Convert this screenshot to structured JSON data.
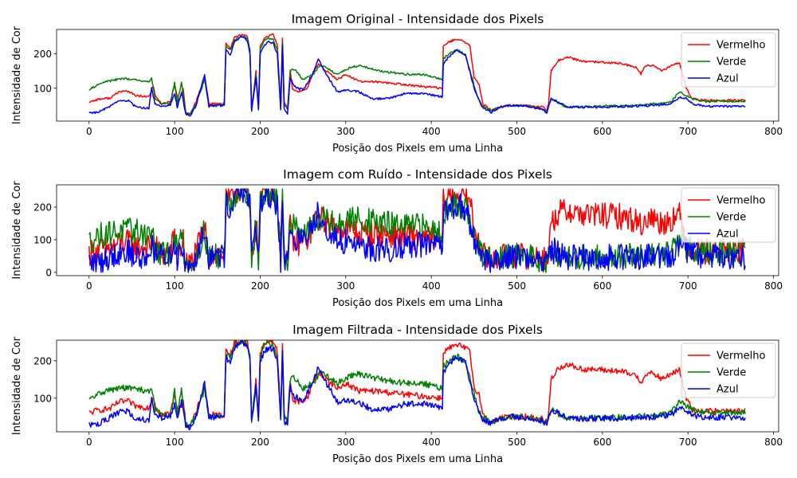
{
  "figure": {
    "background": "#ffffff"
  },
  "chart_data": [
    {
      "type": "line",
      "title": "Imagem Original - Intensidade dos Pixels",
      "xlabel": "Posição dos Pixels em uma Linha",
      "ylabel": "Intensidade de Cor",
      "xlim": [
        -38,
        806
      ],
      "ylim": [
        5,
        270
      ],
      "xticks": [
        0,
        100,
        200,
        300,
        400,
        500,
        600,
        700,
        800
      ],
      "yticks": [
        100,
        200
      ],
      "grid": false,
      "legend": {
        "location": "top-right"
      },
      "noise": 0,
      "series": [
        {
          "name": "Vermelho",
          "color": "#ff0000",
          "points": [
            [
              0,
              60
            ],
            [
              10,
              68
            ],
            [
              25,
              72
            ],
            [
              35,
              90
            ],
            [
              45,
              92
            ],
            [
              55,
              78
            ],
            [
              70,
              75
            ],
            [
              75,
              105
            ],
            [
              78,
              75
            ],
            [
              85,
              55
            ],
            [
              95,
              60
            ],
            [
              100,
              110
            ],
            [
              105,
              60
            ],
            [
              110,
              98
            ],
            [
              113,
              30
            ],
            [
              118,
              25
            ],
            [
              125,
              60
            ],
            [
              135,
              135
            ],
            [
              140,
              55
            ],
            [
              150,
              55
            ],
            [
              158,
              55
            ],
            [
              160,
              230
            ],
            [
              165,
              215
            ],
            [
              170,
              248
            ],
            [
              178,
              255
            ],
            [
              185,
              250
            ],
            [
              188,
              210
            ],
            [
              190,
              40
            ],
            [
              195,
              150
            ],
            [
              198,
              50
            ],
            [
              200,
              220
            ],
            [
              205,
              245
            ],
            [
              210,
              250
            ],
            [
              215,
              255
            ],
            [
              220,
              225
            ],
            [
              224,
              50
            ],
            [
              226,
              245
            ],
            [
              228,
              60
            ],
            [
              232,
              40
            ],
            [
              235,
              150
            ],
            [
              238,
              95
            ],
            [
              245,
              90
            ],
            [
              255,
              100
            ],
            [
              262,
              145
            ],
            [
              268,
              170
            ],
            [
              275,
              155
            ],
            [
              290,
              125
            ],
            [
              300,
              140
            ],
            [
              315,
              120
            ],
            [
              340,
              118
            ],
            [
              370,
              110
            ],
            [
              390,
              105
            ],
            [
              413,
              100
            ],
            [
              414,
              225
            ],
            [
              425,
              238
            ],
            [
              435,
              240
            ],
            [
              445,
              225
            ],
            [
              450,
              130
            ],
            [
              456,
              110
            ],
            [
              460,
              55
            ],
            [
              470,
              35
            ],
            [
              480,
              45
            ],
            [
              490,
              50
            ],
            [
              510,
              50
            ],
            [
              530,
              45
            ],
            [
              535,
              35
            ],
            [
              537,
              55
            ],
            [
              540,
              150
            ],
            [
              548,
              180
            ],
            [
              560,
              190
            ],
            [
              575,
              178
            ],
            [
              600,
              175
            ],
            [
              620,
              172
            ],
            [
              640,
              160
            ],
            [
              645,
              140
            ],
            [
              650,
              165
            ],
            [
              660,
              165
            ],
            [
              670,
              150
            ],
            [
              680,
              165
            ],
            [
              690,
              175
            ],
            [
              698,
              100
            ],
            [
              705,
              70
            ],
            [
              720,
              65
            ],
            [
              767,
              65
            ]
          ]
        },
        {
          "name": "Verde",
          "color": "#008000",
          "points": [
            [
              0,
              95
            ],
            [
              10,
              110
            ],
            [
              20,
              120
            ],
            [
              40,
              128
            ],
            [
              55,
              125
            ],
            [
              65,
              120
            ],
            [
              70,
              118
            ],
            [
              73,
              132
            ],
            [
              77,
              70
            ],
            [
              85,
              55
            ],
            [
              95,
              55
            ],
            [
              100,
              118
            ],
            [
              103,
              55
            ],
            [
              108,
              120
            ],
            [
              113,
              30
            ],
            [
              118,
              25
            ],
            [
              125,
              55
            ],
            [
              135,
              125
            ],
            [
              140,
              50
            ],
            [
              150,
              50
            ],
            [
              158,
              55
            ],
            [
              160,
              220
            ],
            [
              165,
              210
            ],
            [
              170,
              240
            ],
            [
              178,
              250
            ],
            [
              185,
              245
            ],
            [
              188,
              210
            ],
            [
              190,
              40
            ],
            [
              195,
              140
            ],
            [
              198,
              45
            ],
            [
              200,
              215
            ],
            [
              205,
              240
            ],
            [
              210,
              245
            ],
            [
              215,
              240
            ],
            [
              220,
              210
            ],
            [
              224,
              45
            ],
            [
              226,
              235
            ],
            [
              228,
              55
            ],
            [
              232,
              40
            ],
            [
              235,
              150
            ],
            [
              240,
              155
            ],
            [
              250,
              125
            ],
            [
              262,
              140
            ],
            [
              270,
              168
            ],
            [
              280,
              155
            ],
            [
              290,
              140
            ],
            [
              305,
              160
            ],
            [
              315,
              165
            ],
            [
              340,
              150
            ],
            [
              370,
              140
            ],
            [
              390,
              140
            ],
            [
              413,
              125
            ],
            [
              414,
              185
            ],
            [
              420,
              198
            ],
            [
              430,
              212
            ],
            [
              440,
              195
            ],
            [
              450,
              110
            ],
            [
              455,
              70
            ],
            [
              460,
              50
            ],
            [
              470,
              35
            ],
            [
              480,
              45
            ],
            [
              490,
              50
            ],
            [
              510,
              50
            ],
            [
              530,
              40
            ],
            [
              535,
              30
            ],
            [
              540,
              70
            ],
            [
              550,
              55
            ],
            [
              560,
              45
            ],
            [
              600,
              48
            ],
            [
              640,
              50
            ],
            [
              660,
              55
            ],
            [
              680,
              60
            ],
            [
              690,
              90
            ],
            [
              698,
              80
            ],
            [
              705,
              70
            ],
            [
              720,
              62
            ],
            [
              767,
              62
            ]
          ]
        },
        {
          "name": "Azul",
          "color": "#0000ff",
          "points": [
            [
              0,
              30
            ],
            [
              10,
              30
            ],
            [
              20,
              42
            ],
            [
              35,
              62
            ],
            [
              45,
              65
            ],
            [
              55,
              45
            ],
            [
              70,
              42
            ],
            [
              73,
              100
            ],
            [
              77,
              55
            ],
            [
              85,
              48
            ],
            [
              95,
              50
            ],
            [
              100,
              85
            ],
            [
              103,
              45
            ],
            [
              108,
              90
            ],
            [
              113,
              25
            ],
            [
              118,
              20
            ],
            [
              125,
              50
            ],
            [
              135,
              140
            ],
            [
              140,
              48
            ],
            [
              150,
              50
            ],
            [
              158,
              50
            ],
            [
              160,
              210
            ],
            [
              165,
              195
            ],
            [
              170,
              235
            ],
            [
              178,
              250
            ],
            [
              185,
              238
            ],
            [
              188,
              200
            ],
            [
              190,
              35
            ],
            [
              195,
              130
            ],
            [
              198,
              40
            ],
            [
              200,
              200
            ],
            [
              205,
              225
            ],
            [
              210,
              235
            ],
            [
              215,
              230
            ],
            [
              220,
              200
            ],
            [
              224,
              35
            ],
            [
              226,
              225
            ],
            [
              228,
              40
            ],
            [
              232,
              25
            ],
            [
              235,
              130
            ],
            [
              240,
              105
            ],
            [
              250,
              95
            ],
            [
              260,
              135
            ],
            [
              268,
              185
            ],
            [
              275,
              150
            ],
            [
              290,
              90
            ],
            [
              300,
              95
            ],
            [
              315,
              90
            ],
            [
              330,
              70
            ],
            [
              350,
              70
            ],
            [
              370,
              85
            ],
            [
              390,
              85
            ],
            [
              413,
              75
            ],
            [
              414,
              170
            ],
            [
              420,
              190
            ],
            [
              430,
              210
            ],
            [
              440,
              195
            ],
            [
              450,
              100
            ],
            [
              455,
              70
            ],
            [
              460,
              45
            ],
            [
              470,
              30
            ],
            [
              480,
              45
            ],
            [
              490,
              50
            ],
            [
              510,
              48
            ],
            [
              530,
              40
            ],
            [
              535,
              30
            ],
            [
              540,
              70
            ],
            [
              550,
              58
            ],
            [
              560,
              45
            ],
            [
              600,
              45
            ],
            [
              640,
              48
            ],
            [
              660,
              50
            ],
            [
              680,
              55
            ],
            [
              690,
              75
            ],
            [
              698,
              70
            ],
            [
              705,
              55
            ],
            [
              720,
              48
            ],
            [
              767,
              48
            ]
          ]
        }
      ]
    },
    {
      "type": "line",
      "title": "Imagem com Ruído - Intensidade dos Pixels",
      "xlabel": "Posição dos Pixels em uma Linha",
      "ylabel": "Intensidade de Cor",
      "xlim": [
        -38,
        806
      ],
      "ylim": [
        -10,
        268
      ],
      "xticks": [
        0,
        100,
        200,
        300,
        400,
        500,
        600,
        700,
        800
      ],
      "yticks": [
        0,
        100,
        200
      ],
      "grid": false,
      "legend": {
        "location": "top-right"
      },
      "noise": 40,
      "series": [
        {
          "name": "Vermelho",
          "color": "#ff0000",
          "same_shape_as": "original"
        },
        {
          "name": "Verde",
          "color": "#008000",
          "same_shape_as": "original"
        },
        {
          "name": "Azul",
          "color": "#0000ff",
          "same_shape_as": "original"
        }
      ]
    },
    {
      "type": "line",
      "title": "Imagem Filtrada - Intensidade dos Pixels",
      "xlabel": "Posição dos Pixels em uma Linha",
      "ylabel": "Intensidade de Cor",
      "xlim": [
        -38,
        806
      ],
      "ylim": [
        10,
        255
      ],
      "xticks": [
        0,
        100,
        200,
        300,
        400,
        500,
        600,
        700,
        800
      ],
      "yticks": [
        100,
        200
      ],
      "grid": false,
      "legend": {
        "location": "top-right"
      },
      "noise": 8,
      "series": [
        {
          "name": "Vermelho",
          "color": "#ff0000",
          "same_shape_as": "original"
        },
        {
          "name": "Verde",
          "color": "#008000",
          "same_shape_as": "original"
        },
        {
          "name": "Azul",
          "color": "#0000ff",
          "same_shape_as": "original"
        }
      ]
    }
  ]
}
